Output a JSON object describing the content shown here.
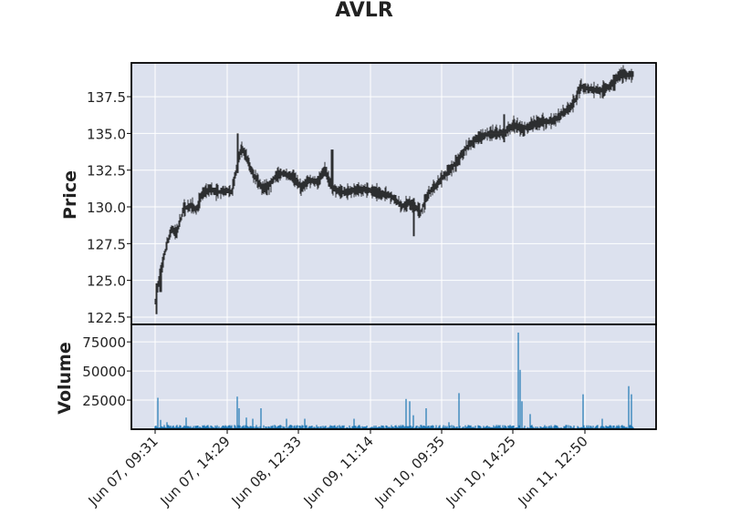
{
  "chart_data": {
    "type": "candlestick",
    "title": "AVLR",
    "background_color": "#dce1ee",
    "grid": true,
    "grid_color": "#ffffff",
    "candle_color": "#000000",
    "volume_color": "#1f77b4",
    "x_tick_labels": [
      "Jun 07, 09:31",
      "Jun 07, 14:29",
      "Jun 08, 12:33",
      "Jun 09, 11:14",
      "Jun 10, 09:35",
      "Jun 10, 14:25",
      "Jun 11, 12:50"
    ],
    "price_panel": {
      "ylabel": "Price",
      "ylim": [
        122.0,
        139.8
      ],
      "yticks": [
        122.5,
        125.0,
        127.5,
        130.0,
        132.5,
        135.0,
        137.5
      ],
      "ytick_labels": [
        "122.5",
        "125.0",
        "127.5",
        "130.0",
        "132.5",
        "135.0",
        "137.5"
      ],
      "price_path": [
        [
          0.0,
          123.6
        ],
        [
          0.01,
          125.3
        ],
        [
          0.025,
          127.5
        ],
        [
          0.035,
          128.5
        ],
        [
          0.045,
          128.2
        ],
        [
          0.06,
          129.9
        ],
        [
          0.075,
          130.1
        ],
        [
          0.085,
          129.8
        ],
        [
          0.1,
          131.0
        ],
        [
          0.115,
          131.2
        ],
        [
          0.13,
          131.0
        ],
        [
          0.15,
          131.1
        ],
        [
          0.16,
          131.0
        ],
        [
          0.18,
          134.0
        ],
        [
          0.19,
          133.5
        ],
        [
          0.2,
          132.5
        ],
        [
          0.21,
          132.0
        ],
        [
          0.225,
          131.2
        ],
        [
          0.24,
          131.5
        ],
        [
          0.255,
          132.2
        ],
        [
          0.27,
          132.3
        ],
        [
          0.29,
          132.0
        ],
        [
          0.305,
          131.3
        ],
        [
          0.32,
          131.8
        ],
        [
          0.34,
          131.7
        ],
        [
          0.355,
          132.6
        ],
        [
          0.37,
          131.3
        ],
        [
          0.39,
          131.0
        ],
        [
          0.41,
          131.1
        ],
        [
          0.43,
          131.2
        ],
        [
          0.45,
          131.1
        ],
        [
          0.47,
          130.9
        ],
        [
          0.49,
          130.8
        ],
        [
          0.505,
          130.4
        ],
        [
          0.515,
          130.0
        ],
        [
          0.53,
          130.3
        ],
        [
          0.545,
          130.0
        ],
        [
          0.555,
          129.6
        ],
        [
          0.57,
          130.8
        ],
        [
          0.59,
          131.6
        ],
        [
          0.61,
          132.3
        ],
        [
          0.63,
          133.0
        ],
        [
          0.65,
          134.0
        ],
        [
          0.67,
          134.6
        ],
        [
          0.69,
          134.9
        ],
        [
          0.71,
          135.0
        ],
        [
          0.73,
          135.0
        ],
        [
          0.75,
          135.6
        ],
        [
          0.77,
          135.3
        ],
        [
          0.79,
          135.6
        ],
        [
          0.81,
          135.8
        ],
        [
          0.83,
          135.8
        ],
        [
          0.85,
          136.3
        ],
        [
          0.87,
          136.8
        ],
        [
          0.88,
          137.4
        ],
        [
          0.89,
          138.2
        ],
        [
          0.91,
          138.0
        ],
        [
          0.93,
          137.9
        ],
        [
          0.945,
          138.1
        ],
        [
          0.96,
          138.5
        ],
        [
          0.975,
          139.0
        ],
        [
          1.0,
          139.0
        ]
      ],
      "extremes": [
        {
          "pos": 0.003,
          "low": 122.7,
          "high": 124.8
        },
        {
          "pos": 0.011,
          "low": 124.2,
          "high": 125.8
        },
        {
          "pos": 0.173,
          "low": 132.3,
          "high": 135.0
        },
        {
          "pos": 0.37,
          "low": 131.5,
          "high": 133.9
        },
        {
          "pos": 0.541,
          "low": 128.0,
          "high": 130.6
        },
        {
          "pos": 0.73,
          "low": 134.4,
          "high": 136.3
        },
        {
          "pos": 0.96,
          "low": 137.9,
          "high": 139.0
        }
      ]
    },
    "volume_panel": {
      "ylabel": "Volume",
      "ylim": [
        0,
        90000
      ],
      "yticks": [
        25000,
        50000,
        75000
      ],
      "ytick_labels": [
        "25000",
        "50000",
        "75000"
      ],
      "baseline_volume": 2500,
      "spikes": [
        {
          "pos": 0.005,
          "value": 27000
        },
        {
          "pos": 0.012,
          "value": 8000
        },
        {
          "pos": 0.024,
          "value": 6000
        },
        {
          "pos": 0.065,
          "value": 10000
        },
        {
          "pos": 0.171,
          "value": 28000
        },
        {
          "pos": 0.175,
          "value": 18000
        },
        {
          "pos": 0.19,
          "value": 10000
        },
        {
          "pos": 0.205,
          "value": 9000
        },
        {
          "pos": 0.222,
          "value": 18000
        },
        {
          "pos": 0.274,
          "value": 9000
        },
        {
          "pos": 0.313,
          "value": 9000
        },
        {
          "pos": 0.416,
          "value": 9000
        },
        {
          "pos": 0.525,
          "value": 26000
        },
        {
          "pos": 0.532,
          "value": 24000
        },
        {
          "pos": 0.54,
          "value": 12000
        },
        {
          "pos": 0.567,
          "value": 18000
        },
        {
          "pos": 0.615,
          "value": 6000
        },
        {
          "pos": 0.636,
          "value": 31000
        },
        {
          "pos": 0.76,
          "value": 83000
        },
        {
          "pos": 0.764,
          "value": 51000
        },
        {
          "pos": 0.768,
          "value": 24000
        },
        {
          "pos": 0.784,
          "value": 13000
        },
        {
          "pos": 0.895,
          "value": 30000
        },
        {
          "pos": 0.935,
          "value": 9000
        },
        {
          "pos": 0.991,
          "value": 37000
        },
        {
          "pos": 0.996,
          "value": 30000
        }
      ]
    }
  }
}
